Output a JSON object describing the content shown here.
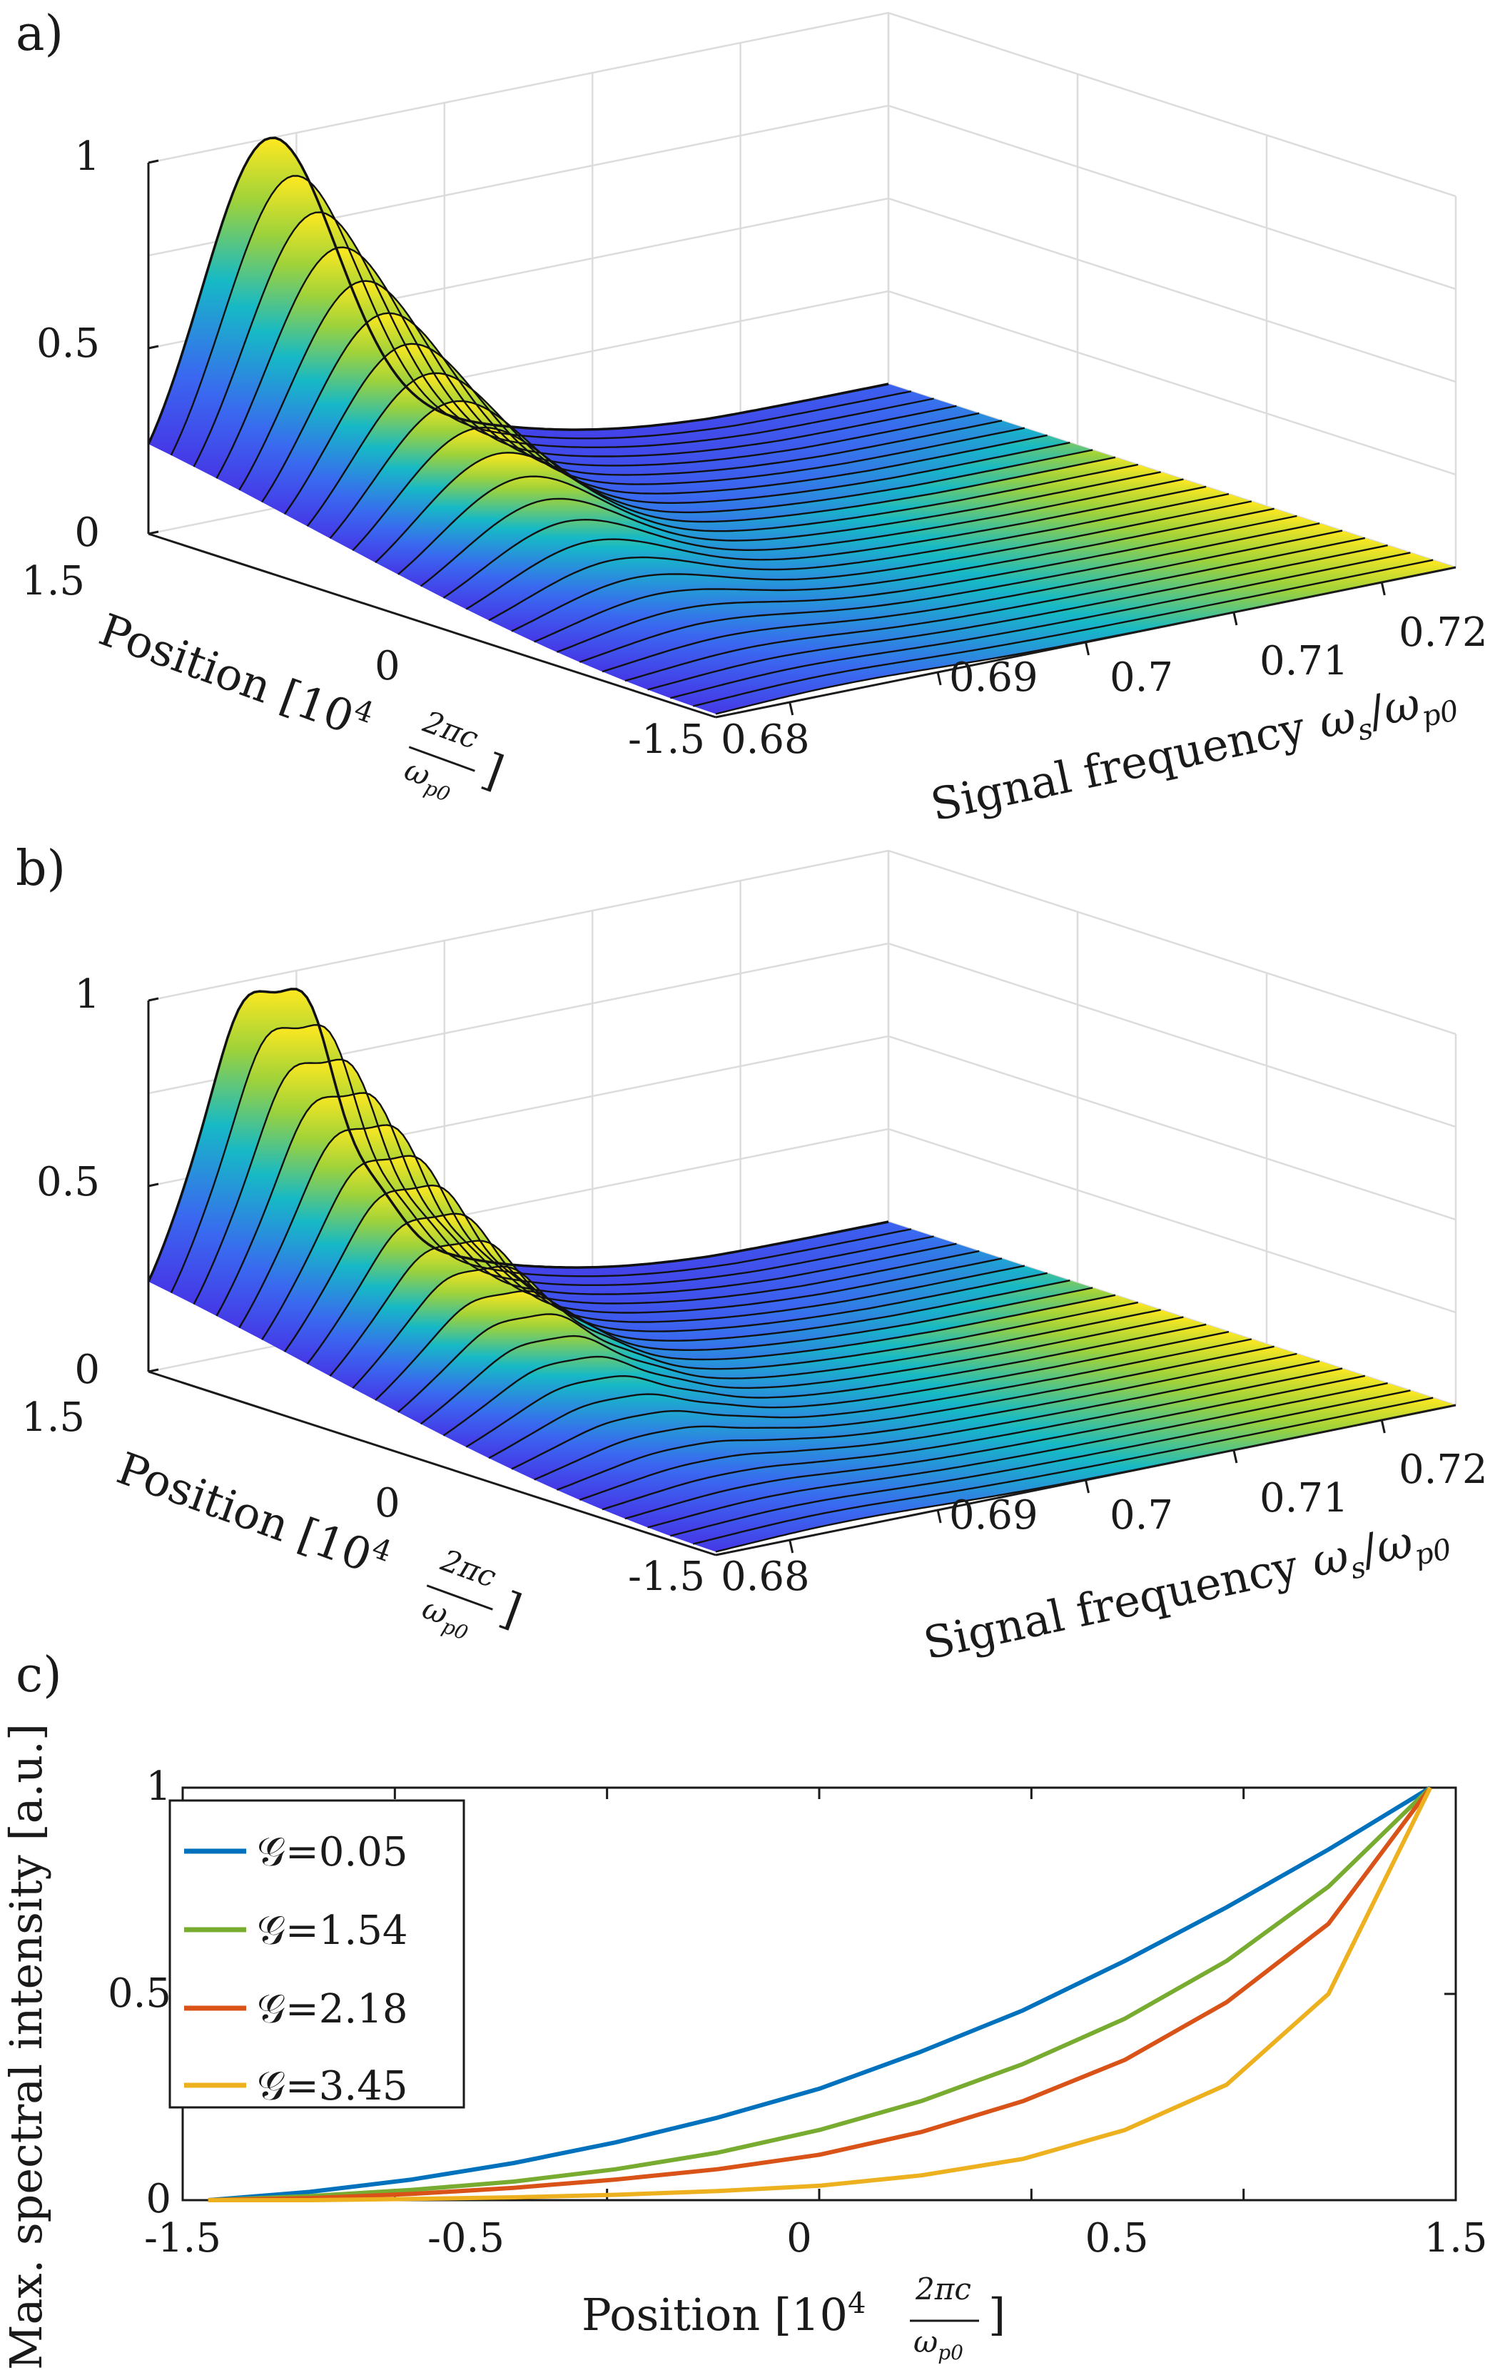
{
  "panels": {
    "a": {
      "label": "a)"
    },
    "b": {
      "label": "b)"
    },
    "c": {
      "label": "c)"
    }
  },
  "surface_axes": {
    "z_ticks": [
      "0",
      "0.5",
      "1"
    ],
    "position_ticks": [
      "1.5",
      "0",
      "-1.5"
    ],
    "frequency_ticks": [
      "0.68",
      "0.69",
      "0.7",
      "0.71",
      "0.72"
    ],
    "position_label": "Position [10",
    "position_label_exp": "4",
    "position_label_frac_num": "2πc",
    "position_label_frac_den": "ω",
    "position_label_frac_den_sub": "p0",
    "position_label_close": "]",
    "frequency_label": "Signal frequency",
    "frequency_symbol": "ω",
    "frequency_symbol_sub": "s",
    "frequency_symbol_den": "ω",
    "frequency_symbol_den_sub": "p0",
    "frequency_symbol_slash": "/"
  },
  "colors": {
    "surface_low": "#4a3ee0",
    "surface_mid": "#1fb8c8",
    "surface_high": "#ffe620",
    "series_blue": "#0072BD",
    "series_green": "#77AC30",
    "series_orange": "#D95319",
    "series_yellow": "#EDB120",
    "grid": "#d9d9d9"
  },
  "chart_data": [
    {
      "type": "surface",
      "panel": "a",
      "x": {
        "name": "Position",
        "range": [
          -1.5,
          1.5
        ]
      },
      "y": {
        "name": "Signal frequency",
        "range": [
          0.675,
          0.725
        ]
      },
      "z": {
        "range": [
          0,
          1
        ]
      },
      "peak": {
        "x": 1.5,
        "y": 0.683,
        "z": 1.0
      },
      "modulated": false
    },
    {
      "type": "surface",
      "panel": "b",
      "x": {
        "name": "Position",
        "range": [
          -1.5,
          1.5
        ]
      },
      "y": {
        "name": "Signal frequency",
        "range": [
          0.675,
          0.725
        ]
      },
      "z": {
        "range": [
          0,
          1
        ]
      },
      "peak": {
        "x": 1.5,
        "y": 0.683,
        "z": 1.0
      },
      "modulated": true
    },
    {
      "type": "line",
      "panel": "c",
      "xlabel": "Position [10",
      "xlabel_exp": "4",
      "xlabel_frac_num": "2πc",
      "xlabel_frac_den": "ω",
      "xlabel_frac_den_sub": "p0",
      "xlabel_close": "]",
      "ylabel": "Max. spectral intensity [a.u.]",
      "xlim": [
        -1.5,
        1.5
      ],
      "ylim": [
        0,
        1
      ],
      "xticks": [
        "-1.5",
        "-0.5",
        "0",
        "0.5",
        "1.5"
      ],
      "yticks": [
        "0",
        "0.5",
        "1"
      ],
      "legend": "top-left",
      "x": [
        -1.44,
        -1.2,
        -0.96,
        -0.72,
        -0.48,
        -0.24,
        0.0,
        0.24,
        0.48,
        0.72,
        0.96,
        1.2,
        1.44
      ],
      "series": [
        {
          "name": "𝒢=0.05",
          "color": "#0072BD",
          "values": [
            0.0,
            0.02,
            0.05,
            0.09,
            0.14,
            0.2,
            0.27,
            0.36,
            0.46,
            0.58,
            0.71,
            0.85,
            1.0
          ]
        },
        {
          "name": "𝒢=1.54",
          "color": "#77AC30",
          "values": [
            0.0,
            0.01,
            0.025,
            0.045,
            0.075,
            0.115,
            0.17,
            0.24,
            0.33,
            0.44,
            0.58,
            0.76,
            1.0
          ]
        },
        {
          "name": "𝒢=2.18",
          "color": "#D95319",
          "values": [
            0.0,
            0.005,
            0.015,
            0.03,
            0.05,
            0.075,
            0.11,
            0.165,
            0.24,
            0.34,
            0.48,
            0.67,
            1.0
          ]
        },
        {
          "name": "𝒢=3.45",
          "color": "#EDB120",
          "values": [
            0.0,
            0.0,
            0.003,
            0.007,
            0.013,
            0.022,
            0.035,
            0.06,
            0.1,
            0.17,
            0.28,
            0.5,
            1.0
          ]
        }
      ]
    }
  ]
}
